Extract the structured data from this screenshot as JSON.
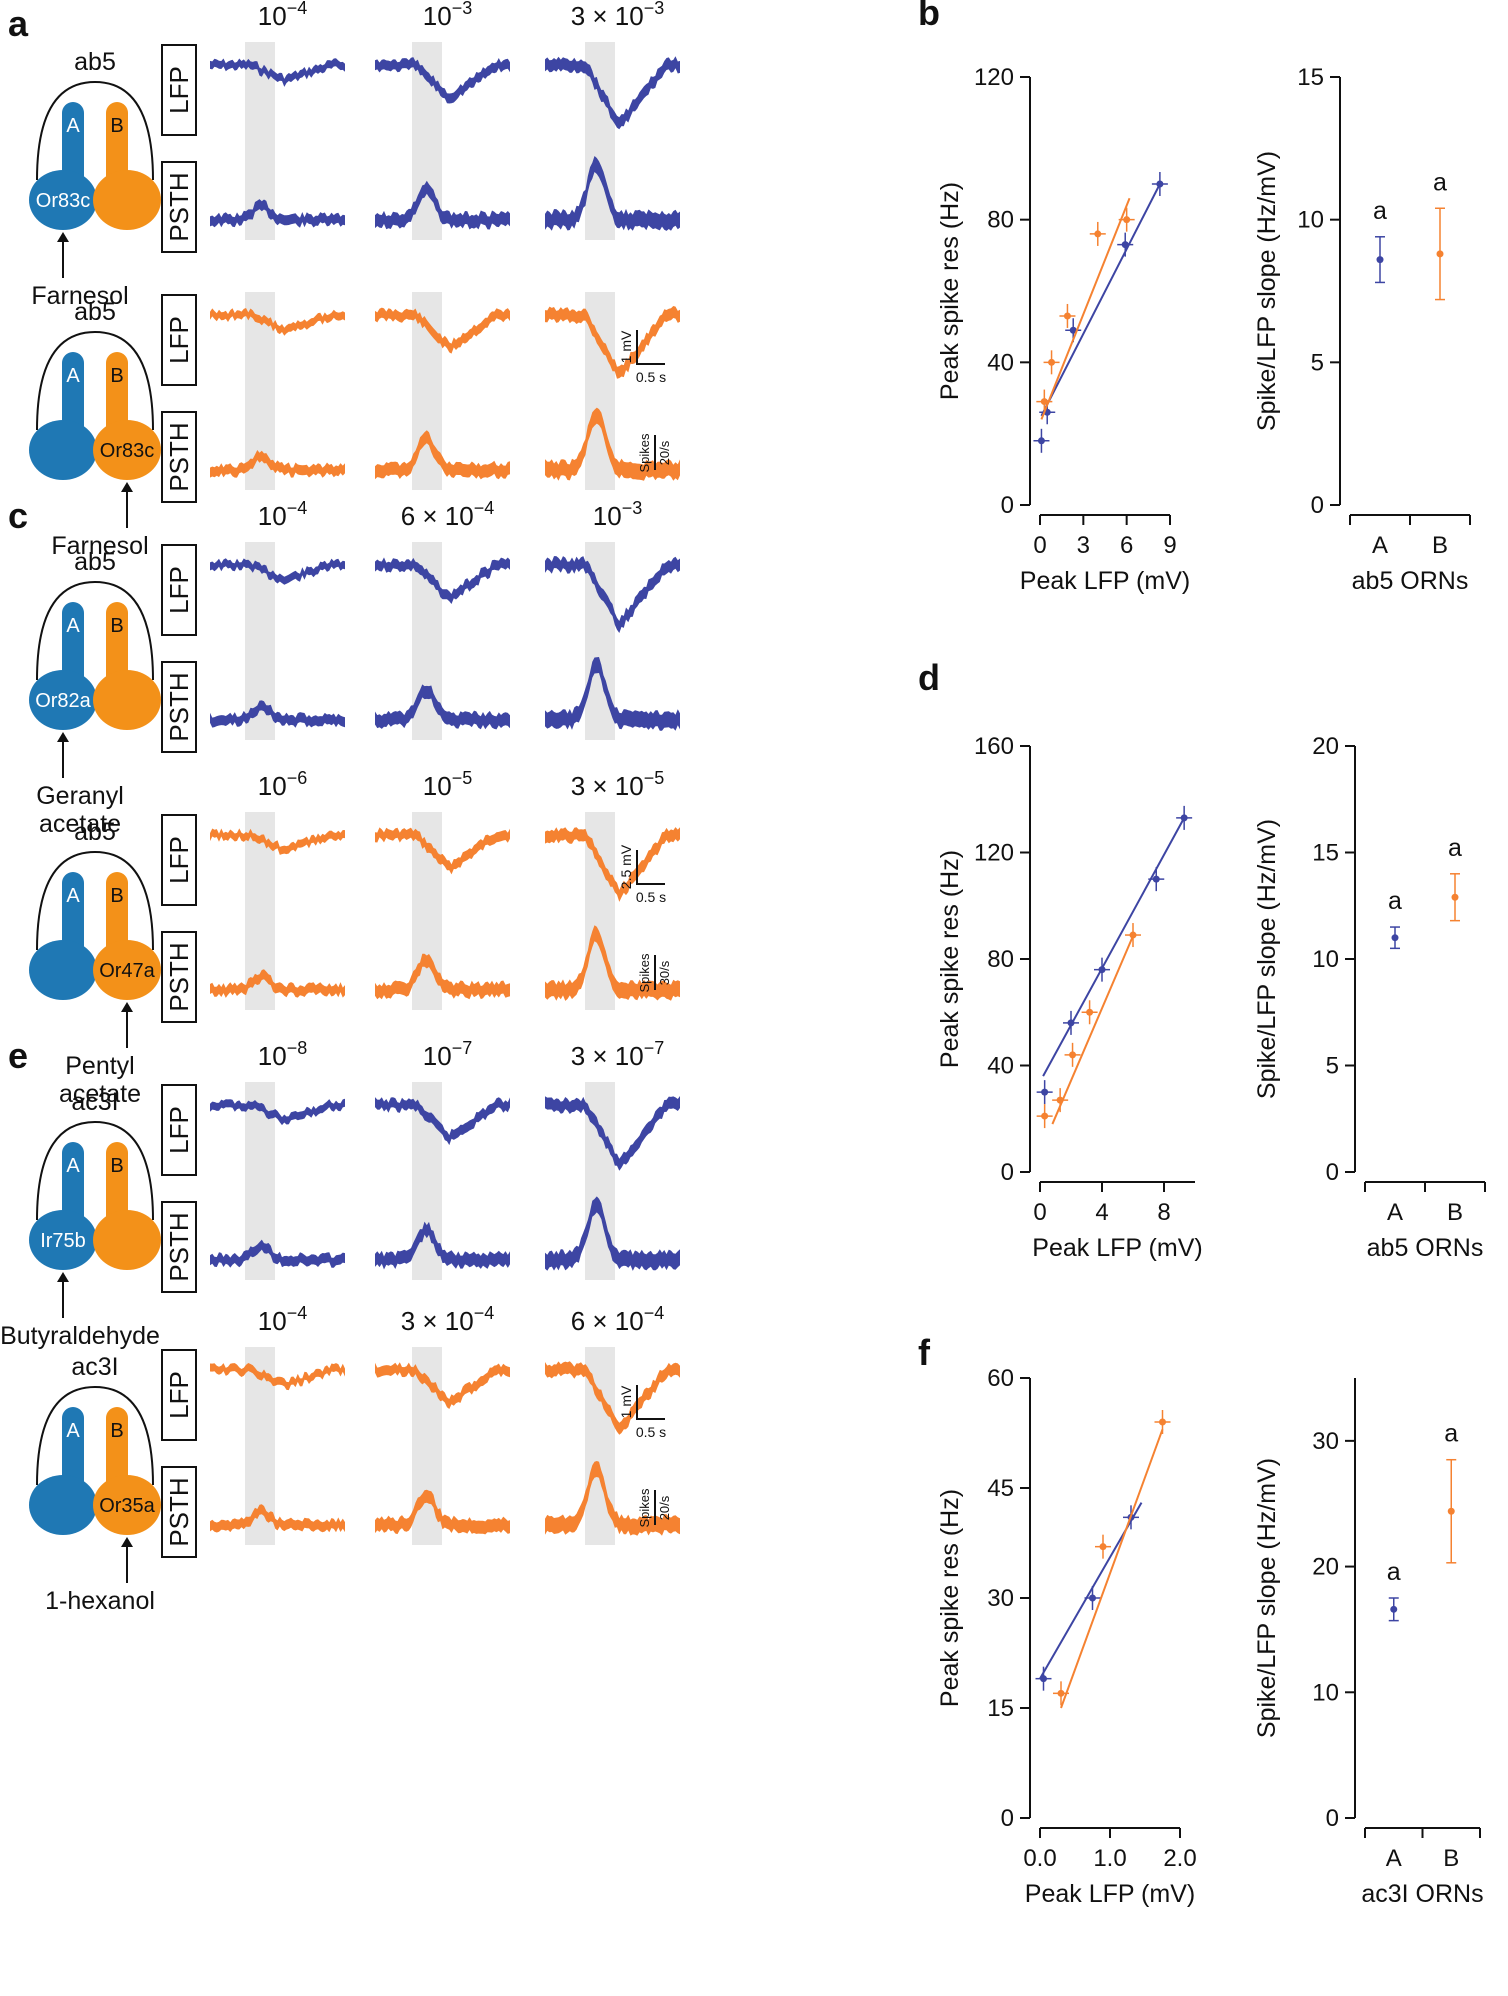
{
  "colors": {
    "blue": "#3d45a3",
    "orange": "#f58231",
    "cellA": "#1f78b4",
    "cellB": "#f39119",
    "stim": "#e6e6e6"
  },
  "rows": [
    {
      "panel": "a",
      "sensillum": "ab5",
      "odorant": "Farnesol",
      "receptor": "Or83c",
      "neuron": "A",
      "concs": [
        "10−4",
        "10−3",
        "3 × 10−3"
      ],
      "yoff": 0
    },
    {
      "panel": "",
      "sensillum": "ab5",
      "odorant": "Farnesol",
      "receptor": "Or83c",
      "neuron": "B",
      "concs": [
        "",
        "",
        ""
      ],
      "yoff": 0
    },
    {
      "panel": "c",
      "sensillum": "ab5",
      "odorant": "Geranyl acetate",
      "receptor": "Or82a",
      "neuron": "A",
      "concs": [
        "10−4",
        "6 × 10−4",
        "10−3"
      ],
      "yoff": 0
    },
    {
      "panel": "",
      "sensillum": "ab5",
      "odorant": "Pentyl acetate",
      "receptor": "Or47a",
      "neuron": "B",
      "concs": [
        "10−6",
        "10−5",
        "3 × 10−5"
      ],
      "yoff": 0
    },
    {
      "panel": "e",
      "sensillum": "ac3I",
      "odorant": "Butyraldehyde",
      "receptor": "Ir75b",
      "neuron": "A",
      "concs": [
        "10−8",
        "10−7",
        "3 × 10−7"
      ],
      "yoff": 0
    },
    {
      "panel": "",
      "sensillum": "ac3I",
      "odorant": "1-hexanol",
      "receptor": "Or35a",
      "neuron": "B",
      "concs": [
        "10−4",
        "3 × 10−4",
        "6 × 10−4"
      ],
      "yoff": 0
    }
  ],
  "labels": {
    "lfp": "LFP",
    "psth": "PSTH",
    "cellA": "A",
    "cellB": "B"
  },
  "scalebars": [
    {
      "v": "1 mV",
      "t": "0.5 s",
      "s": "Spikes",
      "r": "20/s"
    },
    {
      "v": "2.5 mV",
      "t": "0.5 s",
      "s": "Spikes",
      "r": "30/s"
    },
    {
      "v": "1 mV",
      "t": "0.5 s",
      "s": "Spikes",
      "r": "20/s"
    }
  ],
  "chart_data": [
    {
      "panel": "b",
      "type": "scatter",
      "xlabel": "Peak LFP (mV)",
      "ylabel": "Peak spike res (Hz)",
      "xlim": [
        0,
        9
      ],
      "ylim": [
        0,
        120
      ],
      "xticks": [
        0,
        3,
        6,
        9
      ],
      "yticks": [
        0,
        40,
        80,
        120
      ],
      "series": [
        {
          "name": "ab5A",
          "x": [
            0.1,
            0.5,
            2.3,
            5.9,
            8.3
          ],
          "y": [
            18,
            26,
            49,
            73,
            90
          ],
          "fit": [
            [
              0.1,
              25
            ],
            [
              8.3,
              90
            ]
          ]
        },
        {
          "name": "ab5B",
          "x": [
            0.3,
            0.8,
            1.9,
            4.0,
            6.0
          ],
          "y": [
            29,
            40,
            53,
            76,
            80
          ],
          "fit": [
            [
              0.1,
              24
            ],
            [
              6.2,
              86
            ]
          ]
        }
      ]
    },
    {
      "panel": "b",
      "type": "scatter",
      "xlabel": "ab5 ORNs",
      "ylabel": "Spike/LFP slope (Hz/mV)",
      "ylim": [
        0,
        15
      ],
      "yticks": [
        0,
        5,
        10,
        15
      ],
      "categories": [
        "A",
        "B"
      ],
      "values": [
        8.6,
        8.8
      ],
      "err": [
        0.8,
        1.6
      ],
      "letters": [
        "a",
        "a"
      ]
    },
    {
      "panel": "d",
      "type": "scatter",
      "xlabel": "Peak LFP (mV)",
      "ylabel": "Peak spike res (Hz)",
      "xlim": [
        0,
        10
      ],
      "ylim": [
        0,
        160
      ],
      "xticks": [
        0,
        4,
        8
      ],
      "yticks": [
        0,
        40,
        80,
        120,
        160
      ],
      "series": [
        {
          "name": "ab5A",
          "x": [
            0.3,
            2.0,
            4.0,
            7.5,
            9.3
          ],
          "y": [
            30,
            56,
            76,
            110,
            133
          ],
          "fit": [
            [
              0.2,
              36
            ],
            [
              9.3,
              133
            ]
          ]
        },
        {
          "name": "ab5B",
          "x": [
            0.3,
            1.3,
            2.1,
            3.2,
            6.0
          ],
          "y": [
            21,
            27,
            44,
            60,
            89
          ],
          "fit": [
            [
              0.8,
              18
            ],
            [
              6.1,
              90
            ]
          ]
        }
      ]
    },
    {
      "panel": "d",
      "type": "scatter",
      "xlabel": "ab5 ORNs",
      "ylabel": "Spike/LFP slope (Hz/mV)",
      "ylim": [
        0,
        20
      ],
      "yticks": [
        0,
        5,
        10,
        15,
        20
      ],
      "categories": [
        "A",
        "B"
      ],
      "values": [
        11.0,
        12.9
      ],
      "err": [
        0.5,
        1.1
      ],
      "letters": [
        "a",
        "a"
      ]
    },
    {
      "panel": "f",
      "type": "scatter",
      "xlabel": "Peak LFP (mV)",
      "ylabel": "Peak spike res (Hz)",
      "xlim": [
        0,
        2.0
      ],
      "ylim": [
        0,
        60
      ],
      "xticks": [
        0.0,
        1.0,
        2.0
      ],
      "yticks": [
        0,
        15,
        30,
        45,
        60
      ],
      "xticklabels": [
        "0.0",
        "1.0",
        "2.0"
      ],
      "series": [
        {
          "name": "ac3IA",
          "x": [
            0.05,
            0.75,
            1.3
          ],
          "y": [
            19,
            30,
            41
          ],
          "fit": [
            [
              0.0,
              19
            ],
            [
              1.45,
              43
            ]
          ]
        },
        {
          "name": "ac3IB",
          "x": [
            0.3,
            0.9,
            1.75
          ],
          "y": [
            17,
            37,
            54
          ],
          "fit": [
            [
              0.3,
              15
            ],
            [
              1.75,
              53
            ]
          ]
        }
      ]
    },
    {
      "panel": "f",
      "type": "scatter",
      "xlabel": "ac3I ORNs",
      "ylabel": "Spike/LFP slope (Hz/mV)",
      "ylim": [
        0,
        35
      ],
      "yticks": [
        0,
        10,
        20,
        30
      ],
      "categories": [
        "A",
        "B"
      ],
      "values": [
        16.6,
        24.4
      ],
      "err": [
        0.9,
        4.1
      ],
      "letters": [
        "a",
        "a"
      ]
    }
  ]
}
